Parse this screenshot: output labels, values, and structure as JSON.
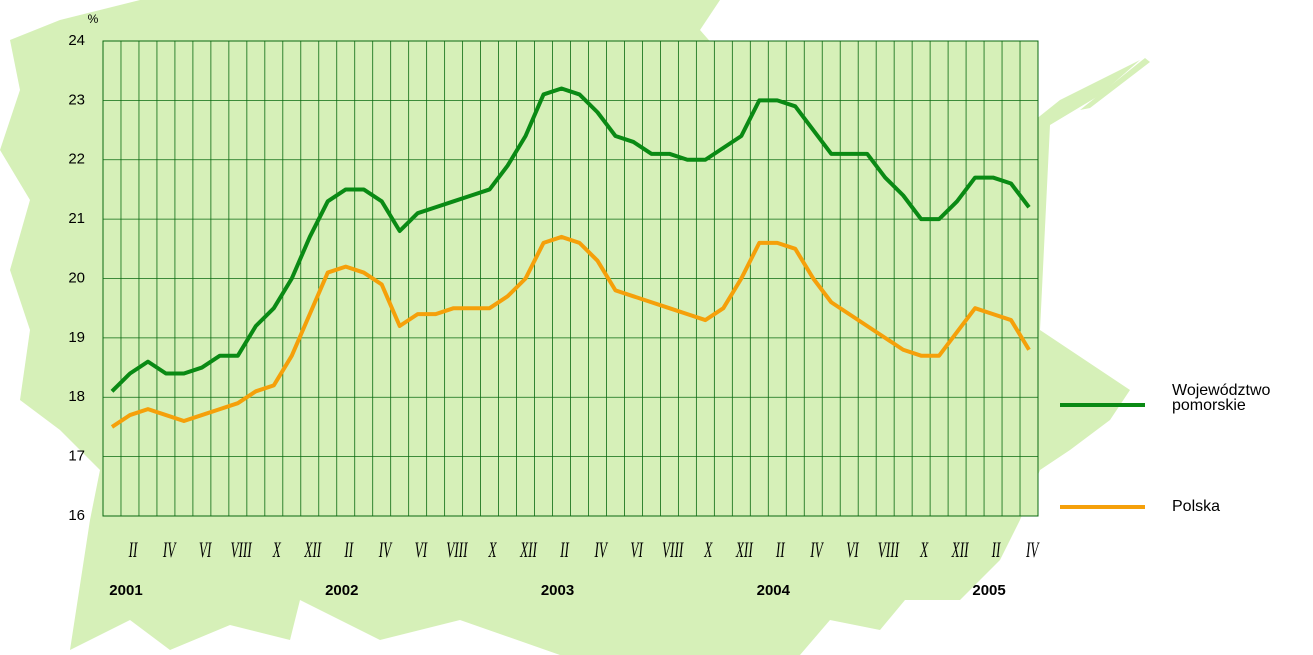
{
  "chart_data": {
    "type": "line",
    "y_unit": "%",
    "categories": [
      null,
      "II",
      null,
      "IV",
      null,
      "VI",
      null,
      "VIII",
      null,
      "X",
      null,
      "XII",
      null,
      "II",
      null,
      "IV",
      null,
      "VI",
      null,
      "VIII",
      null,
      "X",
      null,
      "XII",
      null,
      "II",
      null,
      "IV",
      null,
      "VI",
      null,
      "VIII",
      null,
      "X",
      null,
      "XII",
      null,
      "II",
      null,
      "IV",
      null,
      "VI",
      null,
      "VIII",
      null,
      "X",
      null,
      "XII",
      null,
      "II",
      null,
      "IV"
    ],
    "years": [
      "2001",
      "2002",
      "2003",
      "2004",
      "2005"
    ],
    "series": [
      {
        "name": "Województwo pomorskie",
        "color": "#0a8a14",
        "values": [
          18.1,
          18.4,
          18.6,
          18.4,
          18.4,
          18.5,
          18.7,
          18.7,
          19.2,
          19.5,
          20.0,
          20.7,
          21.3,
          21.5,
          21.5,
          21.3,
          20.8,
          21.1,
          21.2,
          21.3,
          21.4,
          21.5,
          21.9,
          22.4,
          23.1,
          23.2,
          23.1,
          22.8,
          22.4,
          22.3,
          22.1,
          22.1,
          22.0,
          22.0,
          22.2,
          22.4,
          23.0,
          23.0,
          22.9,
          22.5,
          22.1,
          22.1,
          22.1,
          21.7,
          21.4,
          21.0,
          21.0,
          21.3,
          21.7,
          21.7,
          21.6,
          21.2
        ]
      },
      {
        "name": "Polska",
        "color": "#f5a00a",
        "values": [
          17.5,
          17.7,
          17.8,
          17.7,
          17.6,
          17.7,
          17.8,
          17.9,
          18.1,
          18.2,
          18.7,
          19.4,
          20.1,
          20.2,
          20.1,
          19.9,
          19.2,
          19.4,
          19.4,
          19.5,
          19.5,
          19.5,
          19.7,
          20.0,
          20.6,
          20.7,
          20.6,
          20.3,
          19.8,
          19.7,
          19.6,
          19.5,
          19.4,
          19.3,
          19.5,
          20.0,
          20.6,
          20.6,
          20.5,
          20.0,
          19.6,
          19.4,
          19.2,
          19.0,
          18.8,
          18.7,
          18.7,
          19.1,
          19.5,
          19.4,
          19.3,
          18.8
        ]
      }
    ],
    "ylim": [
      16,
      24
    ],
    "yticks": [
      16,
      17,
      18,
      19,
      20,
      21,
      22,
      23,
      24
    ],
    "grid": true
  }
}
